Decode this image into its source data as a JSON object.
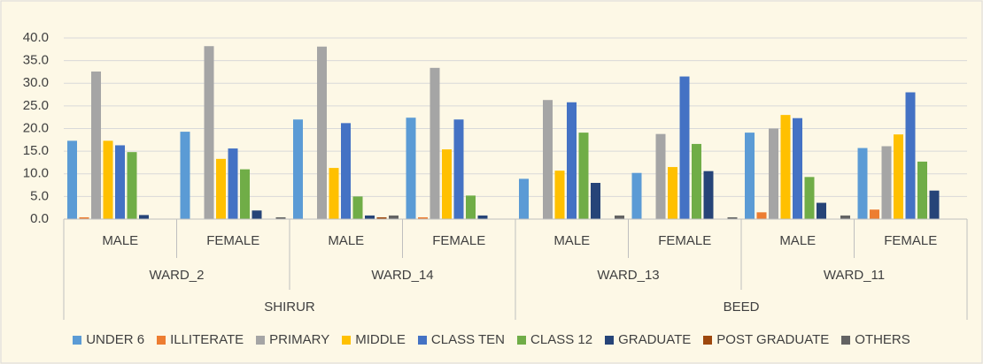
{
  "chart_data": {
    "type": "bar",
    "categories": [
      "MALE",
      "FEMALE",
      "MALE",
      "FEMALE",
      "MALE",
      "FEMALE",
      "MALE",
      "FEMALE"
    ],
    "wards": [
      "WARD_2",
      "WARD_14",
      "WARD_13",
      "WARD_11"
    ],
    "districts": [
      "SHIRUR",
      "BEED"
    ],
    "series": [
      {
        "name": "UNDER 6",
        "color": "#5b9bd5",
        "values": [
          17.3,
          19.3,
          22.0,
          22.4,
          8.9,
          10.2,
          19.1,
          15.7
        ]
      },
      {
        "name": "ILLITERATE",
        "color": "#ed7d31",
        "values": [
          0.4,
          0,
          0,
          0.4,
          0,
          0,
          1.5,
          2.1
        ]
      },
      {
        "name": "PRIMARY",
        "color": "#a5a5a5",
        "values": [
          32.6,
          38.2,
          38.1,
          33.4,
          26.3,
          18.8,
          20.0,
          16.1
        ]
      },
      {
        "name": "MIDDLE",
        "color": "#ffc000",
        "values": [
          17.3,
          13.3,
          11.3,
          15.4,
          10.7,
          11.5,
          23.0,
          18.7
        ]
      },
      {
        "name": "CLASS TEN",
        "color": "#4472c4",
        "values": [
          16.3,
          15.6,
          21.2,
          22.0,
          25.8,
          31.5,
          22.3,
          28.0
        ]
      },
      {
        "name": "CLASS 12",
        "color": "#70ad47",
        "values": [
          14.8,
          11.0,
          5.0,
          5.2,
          19.1,
          16.6,
          9.3,
          12.7
        ]
      },
      {
        "name": "GRADUATE",
        "color": "#264478",
        "values": [
          0.9,
          1.9,
          0.8,
          0.8,
          8.0,
          10.6,
          3.6,
          6.3
        ]
      },
      {
        "name": "POST GRADUATE",
        "color": "#9e480e",
        "values": [
          0,
          0,
          0.4,
          0,
          0,
          0,
          0,
          0
        ]
      },
      {
        "name": "OTHERS",
        "color": "#636363",
        "values": [
          0,
          0.4,
          0.8,
          0,
          0.8,
          0.4,
          0.8,
          0
        ]
      }
    ],
    "ylim": [
      0,
      40
    ],
    "yticks": [
      {
        "value": 0,
        "label": "0.0"
      },
      {
        "value": 5,
        "label": "5.0"
      },
      {
        "value": 10,
        "label": "10.0"
      },
      {
        "value": 15,
        "label": "15.0"
      },
      {
        "value": 20,
        "label": "20.0"
      },
      {
        "value": 25,
        "label": "25.0"
      },
      {
        "value": 30,
        "label": "30.0"
      },
      {
        "value": 35,
        "label": "35.0"
      },
      {
        "value": 40,
        "label": "40.0"
      }
    ],
    "grid": true,
    "legend": "bottom"
  }
}
